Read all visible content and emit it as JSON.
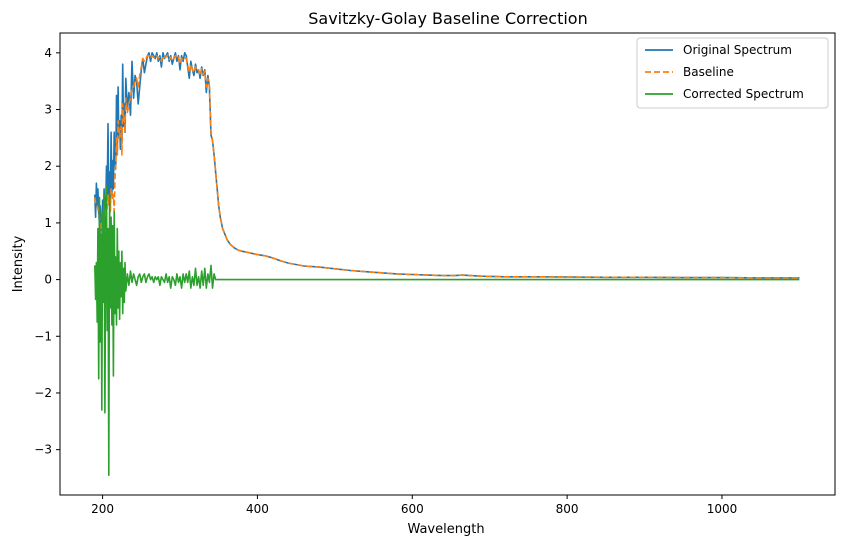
{
  "chart_data": {
    "type": "line",
    "title": "Savitzky-Golay Baseline Correction",
    "xlabel": "Wavelength",
    "ylabel": "Intensity",
    "xlim": [
      145,
      1146
    ],
    "ylim": [
      -3.8,
      4.35
    ],
    "xticks": [
      200,
      400,
      600,
      800,
      1000
    ],
    "yticks": [
      -3,
      -2,
      -1,
      0,
      1,
      2,
      3,
      4
    ],
    "xtick_labels": [
      "200",
      "400",
      "600",
      "800",
      "1000"
    ],
    "ytick_labels": [
      "−3",
      "−2",
      "−1",
      "0",
      "1",
      "2",
      "3",
      "4"
    ],
    "grid": false,
    "legend_position": "top-right",
    "series": [
      {
        "name": "Original Spectrum",
        "color": "#1f77b4",
        "style": "solid",
        "x": [
          190,
          191,
          192,
          193,
          194,
          195,
          196,
          197,
          198,
          199,
          200,
          201,
          202,
          203,
          204,
          205,
          206,
          207,
          208,
          209,
          210,
          211,
          212,
          213,
          214,
          215,
          216,
          217,
          218,
          219,
          220,
          221,
          222,
          223,
          224,
          225,
          226,
          227,
          228,
          229,
          230,
          232,
          234,
          236,
          238,
          240,
          242,
          244,
          246,
          248,
          250,
          252,
          254,
          256,
          258,
          260,
          262,
          264,
          266,
          268,
          270,
          272,
          274,
          276,
          278,
          280,
          282,
          284,
          286,
          288,
          290,
          292,
          294,
          296,
          298,
          300,
          302,
          304,
          306,
          308,
          310,
          312,
          314,
          316,
          318,
          320,
          322,
          324,
          326,
          328,
          330,
          332,
          334,
          336,
          338,
          340,
          342,
          344,
          346,
          348,
          350,
          352,
          355,
          358,
          361,
          365,
          370,
          375,
          380,
          390,
          400,
          410,
          420,
          430,
          440,
          460,
          480,
          500,
          520,
          540,
          560,
          580,
          600,
          620,
          640,
          655,
          665,
          675,
          690,
          720,
          760,
          800,
          850,
          900,
          950,
          1000,
          1050,
          1100
        ],
        "y": [
          1.5,
          1.1,
          1.7,
          1.3,
          1.6,
          1.2,
          0.95,
          1.3,
          1.0,
          0.7,
          1.4,
          1.1,
          1.6,
          0.9,
          1.3,
          2.0,
          1.5,
          2.75,
          1.4,
          1.9,
          1.2,
          2.6,
          1.5,
          2.1,
          1.6,
          2.6,
          2.1,
          1.95,
          3.25,
          2.2,
          3.4,
          2.5,
          2.8,
          2.3,
          2.9,
          2.4,
          3.8,
          2.7,
          3.1,
          2.6,
          3.55,
          3.0,
          3.3,
          2.9,
          3.85,
          3.2,
          3.6,
          3.5,
          3.1,
          3.4,
          3.7,
          3.9,
          3.65,
          3.8,
          3.95,
          4.0,
          3.85,
          4.0,
          3.95,
          3.9,
          4.0,
          3.85,
          3.95,
          3.75,
          4.0,
          3.9,
          3.95,
          4.0,
          3.85,
          3.95,
          3.8,
          3.9,
          4.0,
          3.85,
          3.95,
          3.7,
          3.95,
          3.85,
          4.0,
          3.95,
          3.75,
          3.55,
          3.85,
          3.7,
          3.6,
          3.8,
          3.65,
          3.7,
          3.55,
          3.75,
          3.6,
          3.7,
          3.3,
          3.6,
          3.4,
          2.55,
          2.45,
          2.2,
          1.9,
          1.6,
          1.3,
          1.1,
          0.9,
          0.8,
          0.7,
          0.62,
          0.56,
          0.52,
          0.5,
          0.47,
          0.44,
          0.42,
          0.38,
          0.33,
          0.29,
          0.24,
          0.22,
          0.19,
          0.16,
          0.14,
          0.12,
          0.1,
          0.09,
          0.08,
          0.07,
          0.07,
          0.08,
          0.07,
          0.06,
          0.05,
          0.05,
          0.045,
          0.04,
          0.04,
          0.035,
          0.035,
          0.03,
          0.03
        ]
      },
      {
        "name": "Baseline",
        "color": "#ff7f0e",
        "style": "dashed",
        "x": [
          190,
          191,
          192,
          193,
          194,
          195,
          196,
          197,
          198,
          199,
          200,
          201,
          202,
          203,
          204,
          205,
          206,
          207,
          208,
          209,
          210,
          211,
          212,
          213,
          214,
          215,
          216,
          217,
          218,
          219,
          220,
          221,
          222,
          223,
          224,
          225,
          226,
          227,
          228,
          229,
          230,
          232,
          234,
          236,
          238,
          240,
          242,
          244,
          246,
          248,
          250,
          252,
          254,
          256,
          258,
          260,
          262,
          264,
          266,
          268,
          270,
          272,
          274,
          276,
          278,
          280,
          282,
          284,
          286,
          288,
          290,
          292,
          294,
          296,
          298,
          300,
          302,
          304,
          306,
          308,
          310,
          312,
          314,
          316,
          318,
          320,
          322,
          324,
          326,
          328,
          330,
          332,
          334,
          336,
          338,
          340,
          342,
          344,
          346,
          348,
          350,
          352,
          355,
          358,
          361,
          365,
          370,
          375,
          380,
          390,
          400,
          410,
          420,
          430,
          440,
          460,
          480,
          500,
          520,
          540,
          560,
          580,
          600,
          620,
          640,
          655,
          665,
          675,
          690,
          720,
          760,
          800,
          850,
          900,
          950,
          1000,
          1050,
          1100
        ],
        "y": [
          1.45,
          1.35,
          1.3,
          1.3,
          1.25,
          1.15,
          1.1,
          1.05,
          1.0,
          0.8,
          1.2,
          1.1,
          1.3,
          1.1,
          1.2,
          1.1,
          1.3,
          1.5,
          1.3,
          1.5,
          1.2,
          1.6,
          1.55,
          1.4,
          1.5,
          1.2,
          1.8,
          2.0,
          2.5,
          2.2,
          2.8,
          2.7,
          2.5,
          2.6,
          2.7,
          2.2,
          3.1,
          2.8,
          2.9,
          2.6,
          3.2,
          2.95,
          3.1,
          3.2,
          3.4,
          3.4,
          3.5,
          3.55,
          3.4,
          3.6,
          3.75,
          3.9,
          3.85,
          3.9,
          3.95,
          3.95,
          3.9,
          3.95,
          3.92,
          3.9,
          3.95,
          3.9,
          3.93,
          3.85,
          3.95,
          3.92,
          3.93,
          3.96,
          3.88,
          3.92,
          3.86,
          3.9,
          3.95,
          3.9,
          3.92,
          3.8,
          3.9,
          3.88,
          3.92,
          3.9,
          3.78,
          3.65,
          3.8,
          3.7,
          3.65,
          3.75,
          3.68,
          3.7,
          3.6,
          3.72,
          3.62,
          3.68,
          3.4,
          3.55,
          3.4,
          2.6,
          2.45,
          2.2,
          1.9,
          1.6,
          1.3,
          1.1,
          0.9,
          0.8,
          0.7,
          0.62,
          0.56,
          0.52,
          0.5,
          0.47,
          0.44,
          0.42,
          0.38,
          0.33,
          0.29,
          0.24,
          0.22,
          0.19,
          0.16,
          0.14,
          0.12,
          0.1,
          0.09,
          0.08,
          0.07,
          0.07,
          0.08,
          0.07,
          0.06,
          0.05,
          0.05,
          0.045,
          0.04,
          0.04,
          0.035,
          0.035,
          0.03,
          0.03
        ]
      },
      {
        "name": "Corrected Spectrum",
        "color": "#2ca02c",
        "style": "solid",
        "x": [
          190,
          191,
          192,
          193,
          194,
          195,
          196,
          197,
          198,
          199,
          200,
          201,
          202,
          203,
          204,
          205,
          206,
          207,
          208,
          209,
          210,
          211,
          212,
          213,
          214,
          215,
          216,
          217,
          218,
          219,
          220,
          221,
          222,
          223,
          224,
          225,
          226,
          227,
          228,
          229,
          230,
          232,
          234,
          236,
          238,
          240,
          242,
          244,
          246,
          248,
          250,
          252,
          254,
          256,
          258,
          260,
          262,
          264,
          266,
          268,
          270,
          272,
          274,
          276,
          278,
          280,
          282,
          284,
          286,
          288,
          290,
          292,
          294,
          296,
          298,
          300,
          302,
          304,
          306,
          308,
          310,
          312,
          314,
          316,
          318,
          320,
          322,
          324,
          326,
          328,
          330,
          332,
          334,
          336,
          338,
          340,
          342,
          344,
          346,
          350,
          400,
          500,
          600,
          700,
          800,
          900,
          1000,
          1100
        ],
        "y": [
          0.25,
          -0.35,
          0.3,
          -0.75,
          0.9,
          -1.75,
          1.45,
          -1.1,
          0.8,
          -2.3,
          1.2,
          -0.4,
          1.5,
          -2.35,
          0.6,
          1.65,
          -0.9,
          0.9,
          -3.45,
          1.5,
          -0.5,
          1.1,
          -0.8,
          0.95,
          -1.7,
          1.2,
          -0.6,
          0.4,
          -0.8,
          0.9,
          -0.5,
          0.5,
          -0.7,
          0.3,
          -0.3,
          0.5,
          -0.6,
          0.2,
          -0.4,
          0.3,
          -0.2,
          0.1,
          -0.1,
          0.15,
          -0.05,
          0.1,
          0.0,
          -0.1,
          0.05,
          0.1,
          -0.05,
          0.05,
          0.1,
          -0.05,
          0.05,
          0.1,
          0.0,
          0.05,
          -0.05,
          0.05,
          0.0,
          0.05,
          -0.1,
          0.05,
          0.0,
          -0.05,
          0.1,
          -0.05,
          0.05,
          -0.15,
          0.05,
          0.0,
          -0.1,
          0.1,
          -0.05,
          0.05,
          -0.15,
          0.1,
          -0.05,
          0.1,
          -0.05,
          0.15,
          -0.15,
          0.05,
          -0.1,
          0.2,
          -0.1,
          0.05,
          -0.15,
          0.15,
          -0.1,
          0.2,
          -0.15,
          0.1,
          -0.05,
          0.25,
          -0.15,
          0.1,
          0.0,
          0.0,
          0.0,
          0.0,
          0.0,
          0.0,
          0.0,
          0.0,
          0.0,
          0.0
        ]
      }
    ]
  }
}
